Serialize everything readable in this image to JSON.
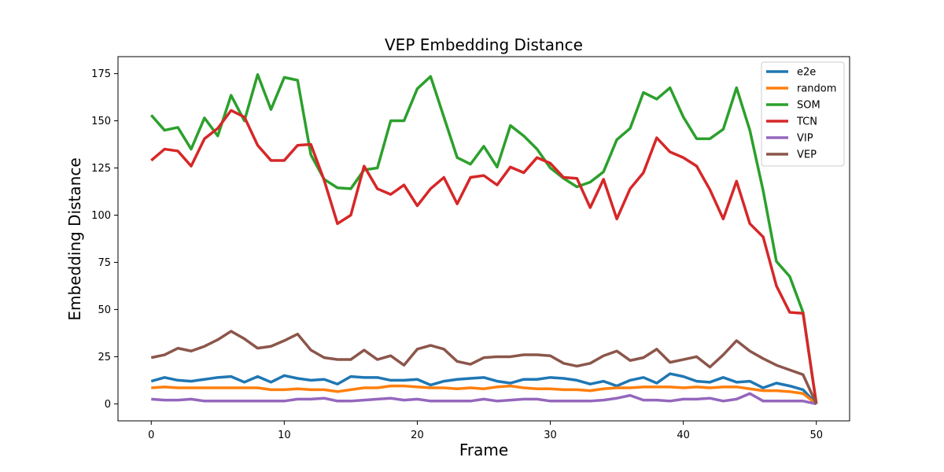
{
  "chart_data": {
    "type": "line",
    "title": "VEP Embedding Distance",
    "xlabel": "Frame",
    "ylabel": "Embedding Distance",
    "xlim": [
      -2.5,
      52.5
    ],
    "ylim": [
      -9,
      184
    ],
    "xticks": [
      0,
      10,
      20,
      30,
      40,
      50
    ],
    "yticks": [
      0,
      25,
      50,
      75,
      100,
      125,
      150,
      175
    ],
    "grid": false,
    "legend_position": "top-right",
    "x": [
      0,
      1,
      2,
      3,
      4,
      5,
      6,
      7,
      8,
      9,
      10,
      11,
      12,
      13,
      14,
      15,
      16,
      17,
      18,
      19,
      20,
      21,
      22,
      23,
      24,
      25,
      26,
      27,
      28,
      29,
      30,
      31,
      32,
      33,
      34,
      35,
      36,
      37,
      38,
      39,
      40,
      41,
      42,
      43,
      44,
      45,
      46,
      47,
      48,
      49,
      50
    ],
    "series": [
      {
        "name": "e2e",
        "color": "#1f77b4",
        "values": [
          12,
          14,
          12.5,
          12,
          13,
          14,
          14.5,
          11.5,
          14.5,
          11.5,
          15,
          13.5,
          12.5,
          13,
          10.5,
          14.5,
          14,
          14,
          12.5,
          12.5,
          13,
          10,
          12,
          13,
          13.5,
          14,
          12,
          11,
          13,
          13,
          14,
          13.5,
          12.5,
          10.5,
          12,
          9.5,
          12.5,
          14,
          11,
          16,
          14.5,
          12,
          11.5,
          14,
          11.5,
          12,
          8.5,
          11,
          9.5,
          7.5,
          0
        ]
      },
      {
        "name": "random",
        "color": "#ff7f0e",
        "values": [
          8.5,
          9,
          8.5,
          8.5,
          8.5,
          8.5,
          8.5,
          8.5,
          8.5,
          7.5,
          7.5,
          8,
          7.5,
          7.5,
          6.5,
          7.5,
          8.5,
          8.5,
          9.5,
          9.5,
          9,
          8.5,
          8.5,
          8,
          8.5,
          8,
          9,
          9.5,
          8.5,
          8,
          8,
          7.5,
          7.5,
          7,
          8,
          8.5,
          8.5,
          9,
          9,
          9,
          8.5,
          9,
          8.5,
          9,
          9,
          8,
          7,
          7,
          6.5,
          5.5,
          0
        ]
      },
      {
        "name": "SOM",
        "color": "#2ca02c",
        "values": [
          153,
          145,
          146.5,
          135,
          151.5,
          142,
          163.5,
          150,
          174.5,
          156,
          173,
          171.5,
          132,
          119,
          114.5,
          114,
          124,
          125,
          150,
          150,
          167,
          173.5,
          152,
          130.5,
          127,
          136.5,
          125.5,
          147.5,
          142,
          135,
          125,
          119.5,
          115,
          117.5,
          123,
          140,
          146,
          165,
          161.5,
          167.5,
          152,
          140.5,
          140.5,
          145.5,
          167.5,
          145,
          113,
          75.5,
          67.5,
          48.5,
          0
        ]
      },
      {
        "name": "TCN",
        "color": "#d62728",
        "values": [
          129,
          135,
          134,
          126,
          140.5,
          146,
          155.5,
          152,
          137,
          129,
          129,
          137,
          137.5,
          118.5,
          95.5,
          100,
          126,
          114,
          111,
          116,
          105,
          114,
          120,
          106,
          120,
          121,
          116,
          125.5,
          122.5,
          130.5,
          127.5,
          120,
          119.5,
          104,
          119,
          98,
          114,
          122.5,
          141,
          133.5,
          130.5,
          126,
          113.5,
          98,
          118,
          95.5,
          88.5,
          62.5,
          48.5,
          48,
          0
        ]
      },
      {
        "name": "VIP",
        "color": "#9467bd",
        "values": [
          2.5,
          2,
          2,
          2.5,
          1.5,
          1.5,
          1.5,
          1.5,
          1.5,
          1.5,
          1.5,
          2.5,
          2.5,
          3,
          1.5,
          1.5,
          2,
          2.5,
          3,
          2,
          2.5,
          1.5,
          1.5,
          1.5,
          1.5,
          2.5,
          1.5,
          2,
          2.5,
          2.5,
          1.5,
          1.5,
          1.5,
          1.5,
          2,
          3,
          4.5,
          2,
          2,
          1.5,
          2.5,
          2.5,
          3,
          1.5,
          2.5,
          5.5,
          1.5,
          1.5,
          1.5,
          1.5,
          0
        ]
      },
      {
        "name": "VEP",
        "color": "#8c564b",
        "values": [
          24.5,
          26,
          29.5,
          28,
          30.5,
          34,
          38.5,
          34.5,
          29.5,
          30.5,
          33.5,
          37,
          28.5,
          24.5,
          23.5,
          23.5,
          28.5,
          23.5,
          25.5,
          20.5,
          29,
          31,
          29,
          22.5,
          21,
          24.5,
          25,
          25,
          26,
          26,
          25.5,
          21.5,
          20,
          21.5,
          25.5,
          28,
          23,
          24.5,
          29,
          22,
          23.5,
          25,
          19.5,
          26,
          33.5,
          28,
          24,
          20.5,
          18,
          15.5,
          0
        ]
      }
    ]
  }
}
